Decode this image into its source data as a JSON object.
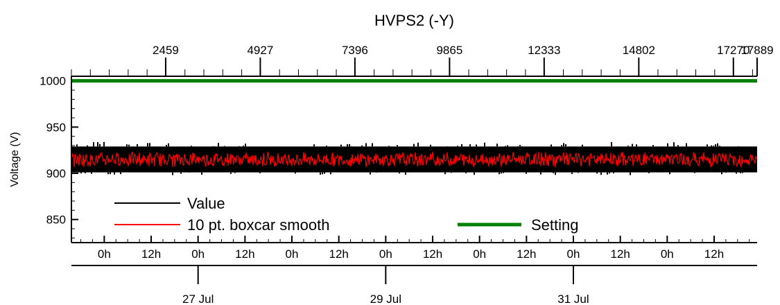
{
  "chart_data": {
    "type": "line",
    "title": "HVPS2 (-Y)",
    "ylabel": "Voltage (V)",
    "ylim": [
      825,
      1005
    ],
    "yticks": [
      850,
      900,
      950,
      1000
    ],
    "top_axis": {
      "range": [
        0,
        17889
      ],
      "ticks": [
        2459,
        4927,
        7396,
        9865,
        12333,
        14802,
        17270,
        17889
      ],
      "labels": [
        "2459",
        "4927",
        "7396",
        "9865",
        "12333",
        "14802",
        "17270",
        "17889"
      ]
    },
    "time_axis": {
      "start": "2024-07-25T15:36",
      "end": "2024-08-01T23:00",
      "hour_labels": [
        "0h",
        "12h",
        "0h",
        "12h",
        "0h",
        "12h",
        "0h",
        "12h",
        "0h",
        "12h",
        "0h",
        "12h",
        "0h",
        "12h"
      ],
      "hour_ticks": [
        "2024-07-26T00:00",
        "2024-07-26T12:00",
        "2024-07-27T00:00",
        "2024-07-27T12:00",
        "2024-07-28T00:00",
        "2024-07-28T12:00",
        "2024-07-29T00:00",
        "2024-07-29T12:00",
        "2024-07-30T00:00",
        "2024-07-30T12:00",
        "2024-07-31T00:00",
        "2024-07-31T12:00",
        "2024-08-01T00:00",
        "2024-08-01T12:00"
      ],
      "day_labels": [
        "27 Jul",
        "29 Jul",
        "31 Jul"
      ],
      "day_ticks": [
        "2024-07-27T00:00",
        "2024-07-29T00:00",
        "2024-07-31T00:00"
      ]
    },
    "series": [
      {
        "name": "Value",
        "color": "#000000",
        "band_min": 901,
        "band_max": 929,
        "spike_range": [
          898,
          934
        ]
      },
      {
        "name": "10 pt. boxcar smooth",
        "color": "#ff0000",
        "mean": 915,
        "band_min": 908,
        "band_max": 923
      },
      {
        "name": "Setting",
        "color": "#008000",
        "values": [
          1000,
          1000
        ]
      }
    ],
    "legend": "bottom-left"
  }
}
